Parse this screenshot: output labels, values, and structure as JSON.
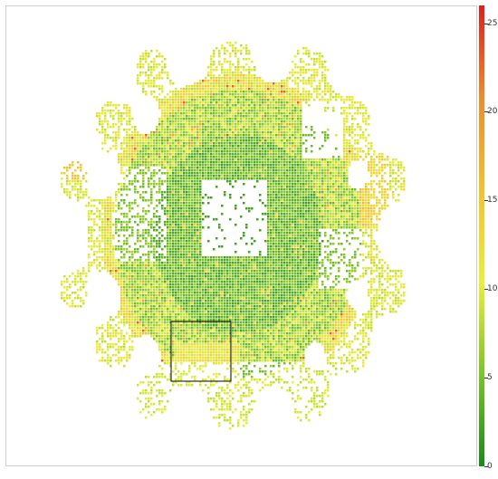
{
  "chart_data": {
    "type": "heatmap",
    "title": "",
    "xlabel": "",
    "ylabel": "",
    "colorbar": {
      "min": 0,
      "max": 26,
      "ticks": [
        0,
        5,
        10,
        15,
        20,
        25
      ],
      "tick_labels": [
        "0",
        "5",
        "10",
        "15",
        "20",
        "25"
      ],
      "colors": [
        "#1a8a1a",
        "#7cc426",
        "#e9ef3a",
        "#f2c12e",
        "#ef8b2a",
        "#e01d1d"
      ]
    },
    "highlight_box": {
      "stroke": "#000000"
    },
    "background": "#ffffff",
    "grid": false,
    "legend": "colorbar-right"
  }
}
